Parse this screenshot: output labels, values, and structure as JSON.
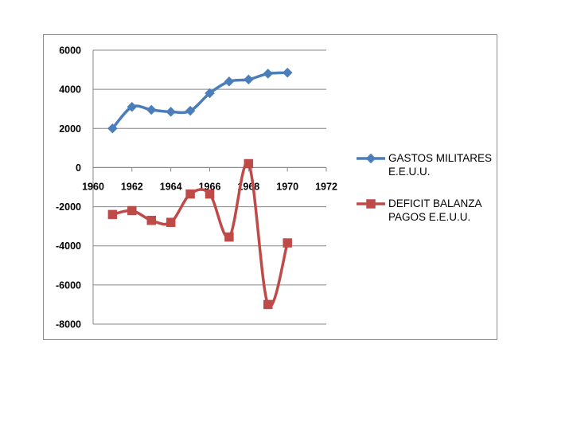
{
  "chart_data": {
    "type": "line",
    "title": "",
    "xlabel": "",
    "ylabel": "",
    "xlim": [
      1960,
      1972
    ],
    "ylim": [
      -8000,
      6000
    ],
    "x_ticks": [
      1960,
      1962,
      1964,
      1966,
      1968,
      1970,
      1972
    ],
    "y_ticks": [
      6000,
      4000,
      2000,
      0,
      -2000,
      -4000,
      -6000,
      -8000
    ],
    "grid": true,
    "legend_position": "right",
    "series": [
      {
        "name_lines": [
          "GASTOS MILITARES",
          "E.E.U.U."
        ],
        "color": "#4a7ebb",
        "marker": "diamond",
        "x": [
          1961,
          1962,
          1963,
          1964,
          1965,
          1966,
          1967,
          1968,
          1969,
          1970
        ],
        "values": [
          2000,
          3100,
          2950,
          2850,
          2900,
          3800,
          4400,
          4500,
          4800,
          4850
        ]
      },
      {
        "name_lines": [
          "DEFICIT BALANZA",
          "PAGOS E.E.U.U."
        ],
        "color": "#be4b48",
        "marker": "square",
        "x": [
          1961,
          1962,
          1963,
          1964,
          1965,
          1966,
          1967,
          1968,
          1969,
          1970
        ],
        "values": [
          -2400,
          -2200,
          -2700,
          -2800,
          -1350,
          -1350,
          -3550,
          200,
          -7000,
          -3850
        ]
      }
    ]
  }
}
